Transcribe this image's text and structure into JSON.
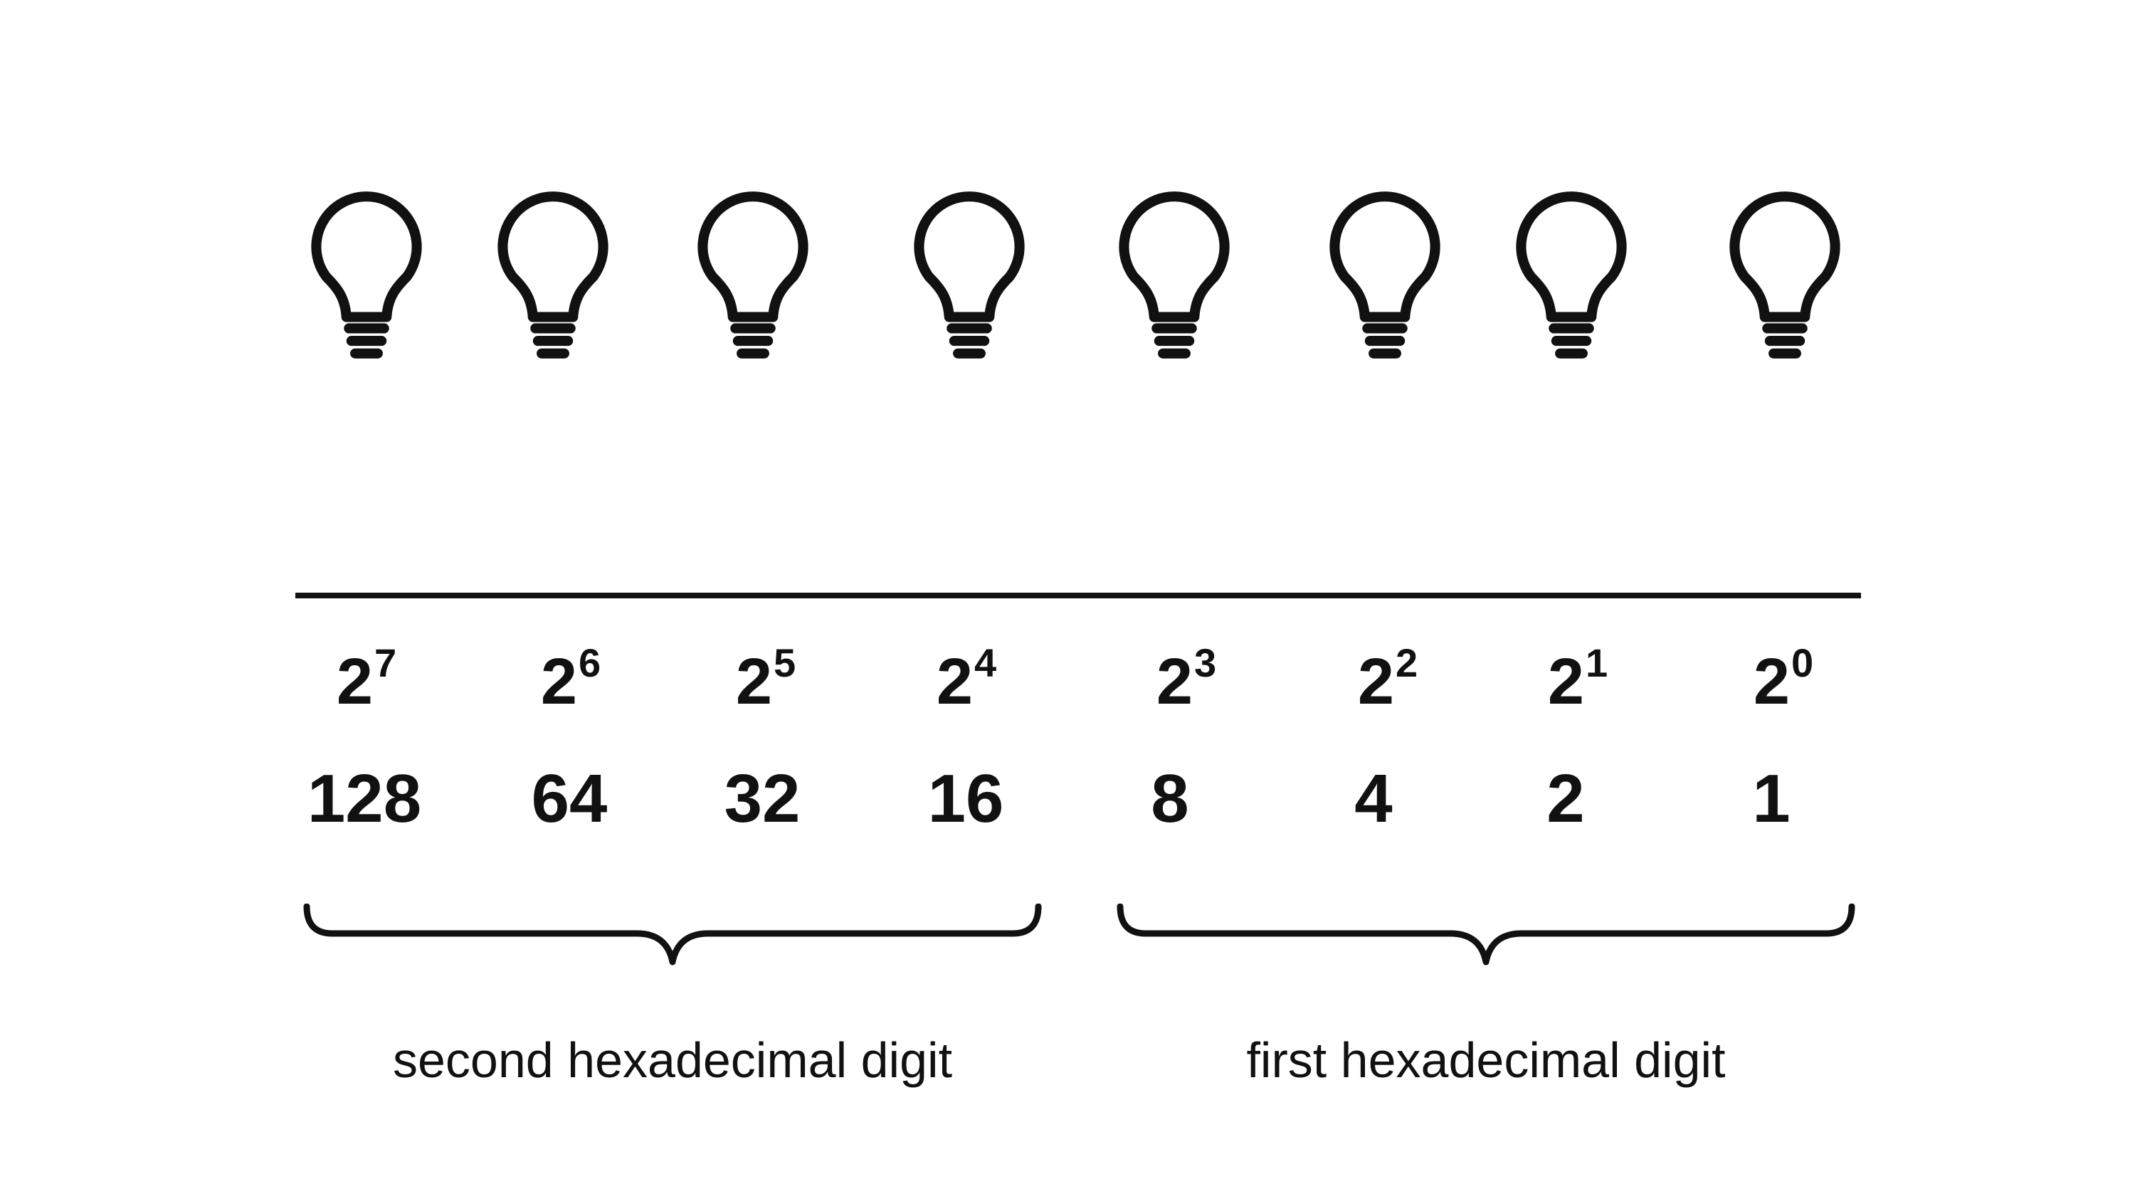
{
  "bits": [
    {
      "base": "2",
      "exponent": "7",
      "value": "128"
    },
    {
      "base": "2",
      "exponent": "6",
      "value": "64"
    },
    {
      "base": "2",
      "exponent": "5",
      "value": "32"
    },
    {
      "base": "2",
      "exponent": "4",
      "value": "16"
    },
    {
      "base": "2",
      "exponent": "3",
      "value": "8"
    },
    {
      "base": "2",
      "exponent": "2",
      "value": "4"
    },
    {
      "base": "2",
      "exponent": "1",
      "value": "2"
    },
    {
      "base": "2",
      "exponent": "0",
      "value": "1"
    }
  ],
  "groups": [
    {
      "label": "second hexadecimal digit"
    },
    {
      "label": "first hexadecimal digit"
    }
  ],
  "icons": {
    "bulb": "light-bulb-icon",
    "brace": "curly-brace-icon"
  },
  "colors": {
    "stroke": "#111111",
    "background": "#ffffff"
  }
}
